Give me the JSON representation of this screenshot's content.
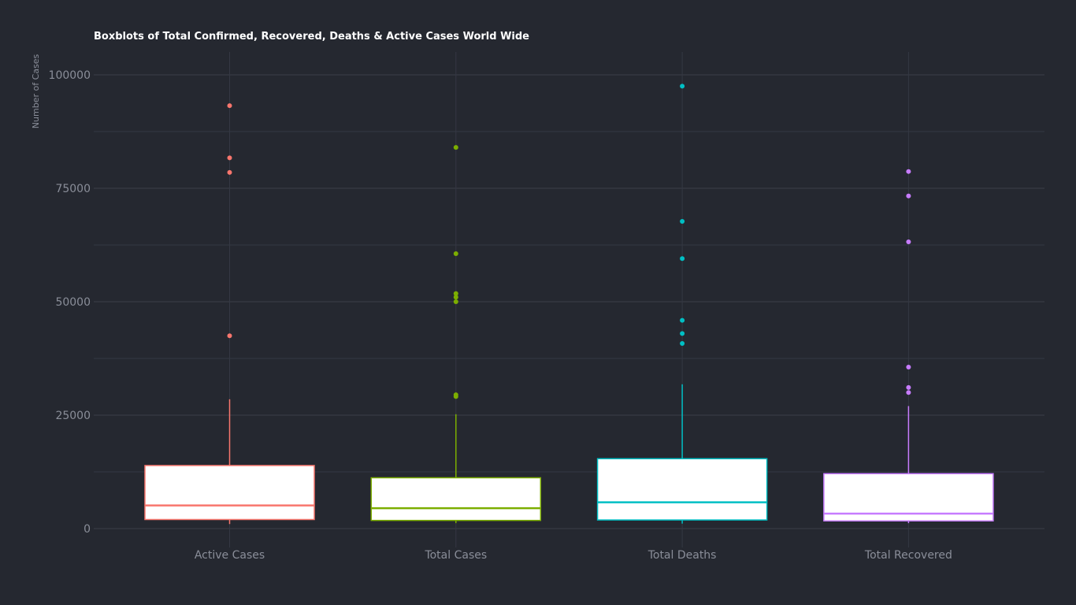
{
  "chart_data": {
    "type": "box",
    "title": "Boxblots of Total Confirmed, Recovered, Deaths & Active Cases World Wide",
    "ylabel": "Number of Cases",
    "xlabel": "",
    "ylim": [
      -4500,
      105000
    ],
    "yticks": [
      0,
      25000,
      50000,
      75000,
      100000
    ],
    "y_minor_gridlines": [
      12500,
      37500,
      62500,
      87500
    ],
    "grid": true,
    "background": "#252830",
    "categories": [
      "Active Cases",
      "Total Cases",
      "Total Deaths",
      "Total Recovered"
    ],
    "series": [
      {
        "name": "Active Cases",
        "color": "#f8766d",
        "min": 1000,
        "q1": 2000,
        "median": 5100,
        "q3": 13900,
        "max": 28500,
        "outliers": [
          93200,
          81700,
          78500,
          42500
        ]
      },
      {
        "name": "Total Cases",
        "color": "#7cae00",
        "min": 1200,
        "q1": 1800,
        "median": 4500,
        "q3": 11200,
        "max": 25200,
        "outliers": [
          84000,
          60600,
          51800,
          51000,
          50000,
          29500,
          29100
        ]
      },
      {
        "name": "Total Deaths",
        "color": "#00bfc4",
        "min": 1100,
        "q1": 1900,
        "median": 5800,
        "q3": 15400,
        "max": 31800,
        "outliers": [
          97500,
          67700,
          59500,
          45900,
          43000,
          40800
        ]
      },
      {
        "name": "Total Recovered",
        "color": "#c77cff",
        "min": 1200,
        "q1": 1700,
        "median": 3300,
        "q3": 12100,
        "max": 27000,
        "outliers": [
          78700,
          73300,
          63200,
          35600,
          31100,
          30000
        ]
      }
    ]
  }
}
